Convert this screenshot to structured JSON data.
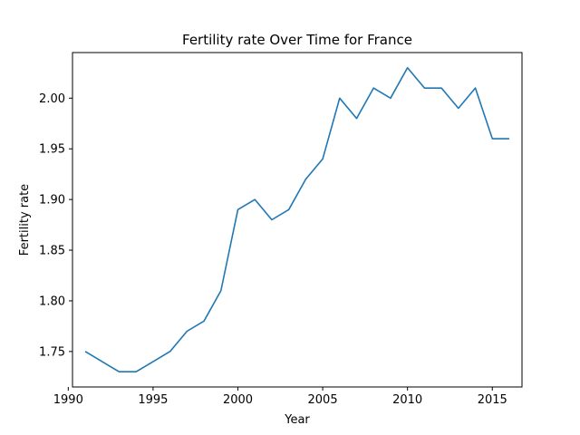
{
  "chart_data": {
    "type": "line",
    "title": "Fertility rate Over Time for France",
    "xlabel": "Year",
    "ylabel": "Fertility rate",
    "xlim": [
      1990.25,
      2016.75
    ],
    "ylim": [
      1.715,
      2.045
    ],
    "xticks": [
      1990,
      1995,
      2000,
      2005,
      2010,
      2015
    ],
    "yticks": [
      1.75,
      1.8,
      1.85,
      1.9,
      1.95,
      2.0
    ],
    "ytick_labels": [
      "1.75",
      "1.80",
      "1.85",
      "1.90",
      "1.95",
      "2.00"
    ],
    "grid": false,
    "line_color": "#1f77b4",
    "series": [
      {
        "x": [
          1991,
          1992,
          1993,
          1994,
          1995,
          1996,
          1997,
          1998,
          1999,
          2000,
          2001,
          2002,
          2003,
          2004,
          2005,
          2006,
          2007,
          2008,
          2009,
          2010,
          2011,
          2012,
          2013,
          2014,
          2015,
          2016
        ],
        "values": [
          1.75,
          1.74,
          1.73,
          1.73,
          1.74,
          1.75,
          1.77,
          1.78,
          1.81,
          1.89,
          1.9,
          1.88,
          1.89,
          1.92,
          1.94,
          2.0,
          1.98,
          2.01,
          2.0,
          2.03,
          2.01,
          2.01,
          1.99,
          2.01,
          1.96,
          1.96
        ]
      }
    ]
  }
}
